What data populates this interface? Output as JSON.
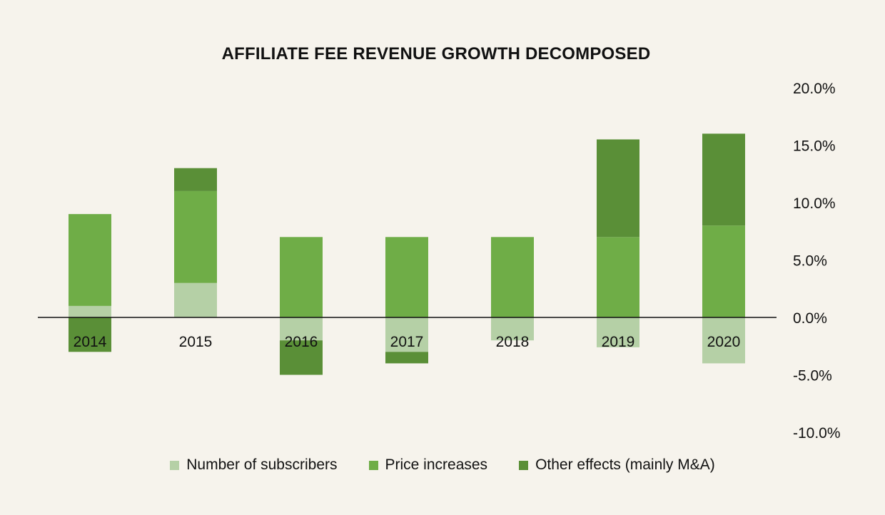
{
  "chart_data": {
    "type": "bar",
    "stacked": true,
    "title": "AFFILIATE FEE REVENUE GROWTH DECOMPOSED",
    "categories": [
      "2014",
      "2015",
      "2016",
      "2017",
      "2018",
      "2019",
      "2020"
    ],
    "series": [
      {
        "name": "Number of subscribers",
        "color": "#b5d0a6",
        "values": [
          1.0,
          3.0,
          -2.0,
          -3.0,
          -2.0,
          -2.6,
          -4.0
        ]
      },
      {
        "name": "Price increases",
        "color": "#6fad47",
        "values": [
          8.0,
          8.0,
          7.0,
          7.0,
          7.0,
          7.0,
          8.0
        ]
      },
      {
        "name": "Other effects (mainly M&A)",
        "color": "#5a8f37",
        "values": [
          -3.0,
          2.0,
          -3.0,
          -1.0,
          0.0,
          8.5,
          8.0
        ]
      }
    ],
    "yaxis": {
      "position": "right",
      "min": -10,
      "max": 20,
      "ticks": [
        20,
        15,
        10,
        5,
        0,
        -5,
        -10
      ],
      "tick_labels": [
        "20.0%",
        "15.0%",
        "10.0%",
        "5.0%",
        "0.0%",
        "-5.0%",
        "-10.0%"
      ]
    },
    "xlabel": "",
    "ylabel": "",
    "grid": false,
    "legend_position": "bottom"
  }
}
